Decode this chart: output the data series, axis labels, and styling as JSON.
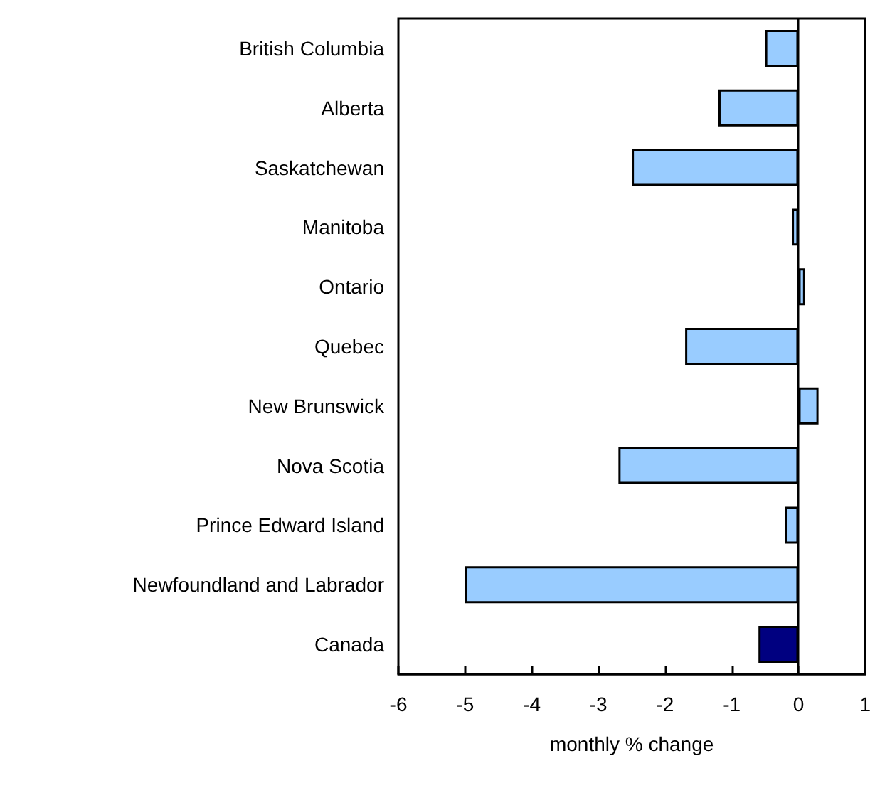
{
  "chart_data": {
    "type": "bar",
    "orientation": "horizontal",
    "xlabel": "monthly % change",
    "categories": [
      "British Columbia",
      "Alberta",
      "Saskatchewan",
      "Manitoba",
      "Ontario",
      "Quebec",
      "New Brunswick",
      "Nova Scotia",
      "Prince Edward Island",
      "Newfoundland and Labrador",
      "Canada"
    ],
    "values": [
      -0.5,
      -1.2,
      -2.5,
      -0.1,
      0.1,
      -1.7,
      0.3,
      -2.7,
      -0.2,
      -5.0,
      -0.6
    ],
    "colors": [
      "#99ccff",
      "#99ccff",
      "#99ccff",
      "#99ccff",
      "#99ccff",
      "#99ccff",
      "#99ccff",
      "#99ccff",
      "#99ccff",
      "#99ccff",
      "#000080"
    ],
    "xlim": [
      -6,
      1
    ],
    "xticks": [
      -6,
      -5,
      -4,
      -3,
      -2,
      -1,
      0,
      1
    ]
  }
}
